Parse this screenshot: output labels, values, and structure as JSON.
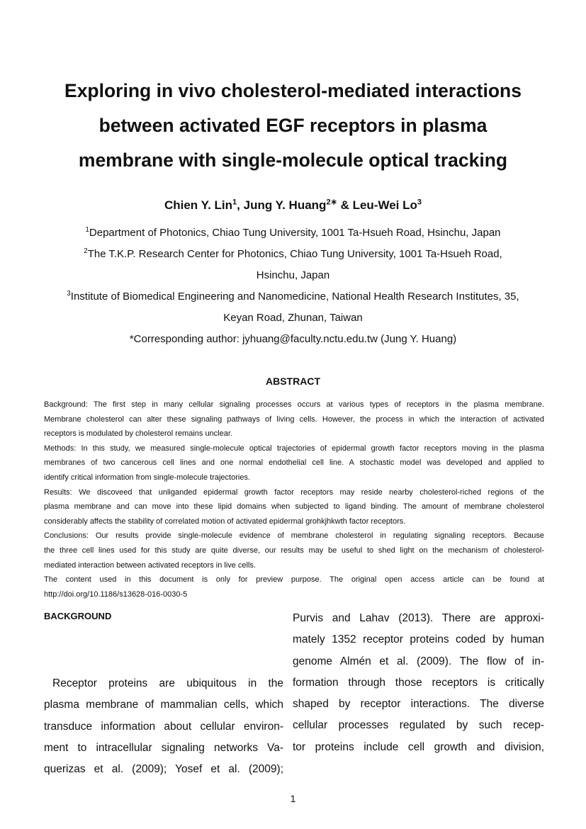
{
  "title_lines": [
    "Exploring in vivo cholesterol-mediated interactions",
    "between activated EGF receptors in plasma",
    "membrane with single-molecule optical tracking"
  ],
  "authors": [
    {
      "name": "Chien Y. Lin",
      "sup": "1"
    },
    {
      "name": "Jung Y. Huang",
      "sup": "2∗"
    },
    {
      "name": "Leu-Wei Lo",
      "sup": "3"
    }
  ],
  "author_separators": [
    ", ",
    " & "
  ],
  "affiliations": [
    {
      "sup": "1",
      "lines": [
        "Department of Photonics, Chiao Tung University, 1001 Ta-Hsueh Road, Hsinchu, Japan"
      ]
    },
    {
      "sup": "2",
      "lines": [
        "The T.K.P. Research Center for Photonics, Chiao Tung University, 1001 Ta-Hsueh Road,",
        "Hsinchu, Japan"
      ]
    },
    {
      "sup": "3",
      "lines": [
        "Institute of Biomedical Engineering and Nanomedicine, National Health Research Institutes, 35,",
        "Keyan Road, Zhunan, Taiwan"
      ]
    }
  ],
  "corresponding": "*Corresponding author: jyhuang@faculty.nctu.edu.tw (Jung Y. Huang)",
  "abstract_heading": "ABSTRACT",
  "abstract_paragraphs": [
    [
      "Background: The first step in many cellular signaling processes occurs at various types of receptors in the plasma membrane.",
      "Membrane cholesterol can alter these signaling pathways of living cells. However, the process in which the interaction of activated",
      "receptors is modulated by cholesterol remains unclear."
    ],
    [
      "Methods: In this study, we measured single-molecule optical trajectories of epidermal growth factor receptors moving in the plasma",
      "membranes of two cancerous cell lines and one normal endothelial cell line.  A stochastic model was developed and applied to",
      "identify critical information from single-molecule trajectories."
    ],
    [
      "Results: We discoveed that unliganded epidermal growth factor receptors may reside nearby cholesterol-riched regions of the",
      "plasma membrane and can move into these lipid domains when subjected to ligand binding. The amount of membrane cholesterol",
      "considerably affects the stability of correlated motion of activated epidermal grohkjhkwth factor receptors."
    ],
    [
      "Conclusions: Our results provide single-molecule evidence of membrane cholesterol in regulating signaling receptors.  Because",
      "the three cell lines used for this study are quite diverse, our results may be useful to shed light on the mechanism of cholesterol-",
      "mediated interaction between activated receptors in live cells."
    ],
    [
      "The content used in this document is only for preview purpose.  The original open access article can be found at",
      "http://doi.org/10.1186/s13628-016-0030-5"
    ]
  ],
  "section_heading": "BACKGROUND",
  "left_column_lines": [
    "Receptor proteins are ubiquitous in the",
    "plasma membrane of mammalian cells, which",
    "transduce information about cellular environ-",
    "ment to intracellular signaling networks Va-",
    "querizas et al. (2009); Yosef et al. (2009);"
  ],
  "right_column_lines": [
    "Purvis and Lahav (2013).  There are approxi-",
    "mately 1352 receptor proteins coded by human",
    "genome Almén et al. (2009).  The flow of in-",
    "formation through those receptors is critically",
    "shaped by receptor interactions.  The diverse",
    "cellular processes regulated by such recep-",
    "tor proteins include cell growth and division,"
  ],
  "page_number": "1"
}
